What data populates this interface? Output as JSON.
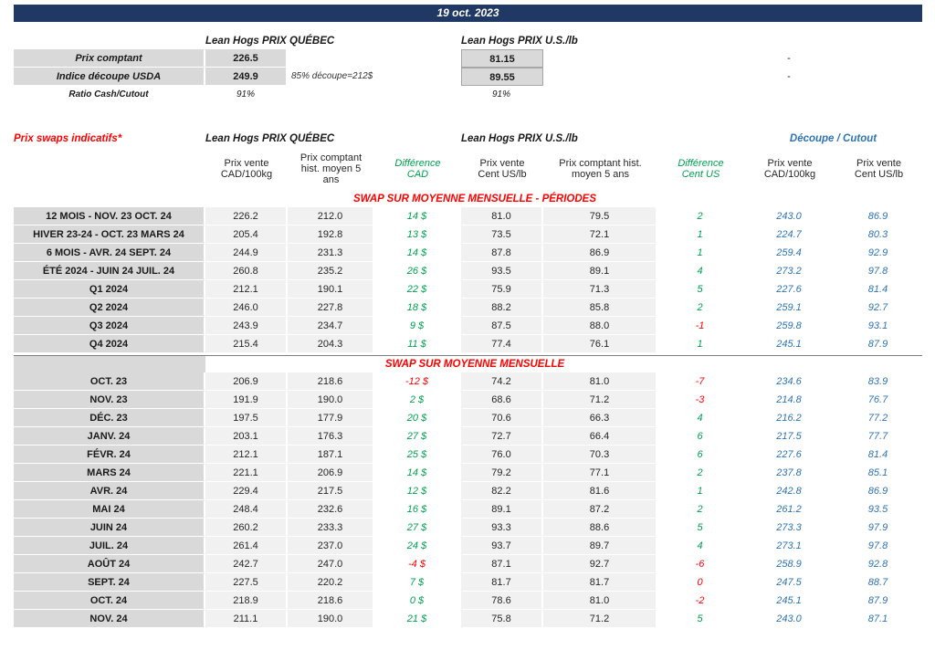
{
  "date_bar": {
    "date": "19 oct. 2023"
  },
  "colors": {
    "banner_navy": "#1f3864",
    "title_red": "#ff0000",
    "diff_green": "#00a050",
    "cutout_blue": "#2e74b5",
    "label_gray": "#d9d9d9",
    "cell_gray": "#f1f1f1"
  },
  "spot": {
    "quebec_title": "Lean Hogs PRIX QUÉBEC",
    "us_title": "Lean Hogs PRIX U.S./lb",
    "rows": [
      {
        "label": "Prix comptant",
        "quebec": "226.5",
        "note": "",
        "us": "81.15",
        "right": "-"
      },
      {
        "label": "Indice découpe USDA",
        "quebec": "249.9",
        "note": "85% découpe=212$",
        "us": "89.55",
        "right": "-"
      },
      {
        "label": "Ratio Cash/Cutout",
        "quebec": "91%",
        "note": "",
        "us": "91%",
        "right": ""
      }
    ]
  },
  "swaps": {
    "title": "Prix swaps indicatifs*",
    "quebec_group": "Lean Hogs PRIX QUÉBEC",
    "us_group": "Lean Hogs PRIX U.S./lb",
    "cutout_group": "Découpe / Cutout",
    "col_headers": [
      "Prix vente\nCAD/100kg",
      "Prix comptant\nhist. moyen 5\nans",
      "Différence\nCAD",
      "Prix vente\nCent US/lb",
      "Prix comptant hist.\nmoyen 5 ans",
      "Différence\nCent US",
      "Prix vente\nCAD/100kg",
      "Prix vente\nCent US/lb"
    ],
    "periods_title": "SWAP SUR MOYENNE MENSUELLE - PÉRIODES",
    "monthly_title": "SWAP SUR MOYENNE MENSUELLE",
    "period_rows": [
      {
        "label": "12 MOIS - NOV. 23 OCT. 24",
        "vente_cad": "226.2",
        "hist_cad": "212.0",
        "diff_cad": "14 $",
        "diff_cad_tone": "pos",
        "vente_us": "81.0",
        "hist_us": "79.5",
        "diff_us": "2",
        "diff_us_tone": "pos",
        "cutout_cad": "243.0",
        "cutout_us": "86.9"
      },
      {
        "label": "HIVER 23-24 -  OCT. 23 MARS 24",
        "vente_cad": "205.4",
        "hist_cad": "192.8",
        "diff_cad": "13 $",
        "diff_cad_tone": "pos",
        "vente_us": "73.5",
        "hist_us": "72.1",
        "diff_us": "1",
        "diff_us_tone": "pos",
        "cutout_cad": "224.7",
        "cutout_us": "80.3"
      },
      {
        "label": "6 MOIS -  AVR. 24 SEPT. 24",
        "vente_cad": "244.9",
        "hist_cad": "231.3",
        "diff_cad": "14 $",
        "diff_cad_tone": "pos",
        "vente_us": "87.8",
        "hist_us": "86.9",
        "diff_us": "1",
        "diff_us_tone": "pos",
        "cutout_cad": "259.4",
        "cutout_us": "92.9"
      },
      {
        "label": "ÉTÉ 2024 - JUIN 24 JUIL. 24",
        "vente_cad": "260.8",
        "hist_cad": "235.2",
        "diff_cad": "26 $",
        "diff_cad_tone": "pos",
        "vente_us": "93.5",
        "hist_us": "89.1",
        "diff_us": "4",
        "diff_us_tone": "pos",
        "cutout_cad": "273.2",
        "cutout_us": "97.8"
      },
      {
        "label": "Q1 2024",
        "vente_cad": "212.1",
        "hist_cad": "190.1",
        "diff_cad": "22 $",
        "diff_cad_tone": "pos",
        "vente_us": "75.9",
        "hist_us": "71.3",
        "diff_us": "5",
        "diff_us_tone": "pos",
        "cutout_cad": "227.6",
        "cutout_us": "81.4"
      },
      {
        "label": "Q2 2024",
        "vente_cad": "246.0",
        "hist_cad": "227.8",
        "diff_cad": "18 $",
        "diff_cad_tone": "pos",
        "vente_us": "88.2",
        "hist_us": "85.8",
        "diff_us": "2",
        "diff_us_tone": "pos",
        "cutout_cad": "259.1",
        "cutout_us": "92.7"
      },
      {
        "label": "Q3 2024",
        "vente_cad": "243.9",
        "hist_cad": "234.7",
        "diff_cad": "9 $",
        "diff_cad_tone": "pos",
        "vente_us": "87.5",
        "hist_us": "88.0",
        "diff_us": "-1",
        "diff_us_tone": "neg",
        "cutout_cad": "259.8",
        "cutout_us": "93.1"
      },
      {
        "label": "Q4 2024",
        "vente_cad": "215.4",
        "hist_cad": "204.3",
        "diff_cad": "11 $",
        "diff_cad_tone": "pos",
        "vente_us": "77.4",
        "hist_us": "76.1",
        "diff_us": "1",
        "diff_us_tone": "pos",
        "cutout_cad": "245.1",
        "cutout_us": "87.9"
      }
    ],
    "monthly_rows": [
      {
        "label": "OCT. 23",
        "vente_cad": "206.9",
        "hist_cad": "218.6",
        "diff_cad": "-12 $",
        "diff_cad_tone": "neg",
        "vente_us": "74.2",
        "hist_us": "81.0",
        "diff_us": "-7",
        "diff_us_tone": "neg",
        "cutout_cad": "234.6",
        "cutout_us": "83.9"
      },
      {
        "label": "NOV. 23",
        "vente_cad": "191.9",
        "hist_cad": "190.0",
        "diff_cad": "2 $",
        "diff_cad_tone": "pos",
        "vente_us": "68.6",
        "hist_us": "71.2",
        "diff_us": "-3",
        "diff_us_tone": "neg",
        "cutout_cad": "214.8",
        "cutout_us": "76.7"
      },
      {
        "label": "DÉC. 23",
        "vente_cad": "197.5",
        "hist_cad": "177.9",
        "diff_cad": "20 $",
        "diff_cad_tone": "pos",
        "vente_us": "70.6",
        "hist_us": "66.3",
        "diff_us": "4",
        "diff_us_tone": "pos",
        "cutout_cad": "216.2",
        "cutout_us": "77.2"
      },
      {
        "label": "JANV. 24",
        "vente_cad": "203.1",
        "hist_cad": "176.3",
        "diff_cad": "27 $",
        "diff_cad_tone": "pos",
        "vente_us": "72.7",
        "hist_us": "66.4",
        "diff_us": "6",
        "diff_us_tone": "pos",
        "cutout_cad": "217.5",
        "cutout_us": "77.7"
      },
      {
        "label": "FÉVR. 24",
        "vente_cad": "212.1",
        "hist_cad": "187.1",
        "diff_cad": "25 $",
        "diff_cad_tone": "pos",
        "vente_us": "76.0",
        "hist_us": "70.3",
        "diff_us": "6",
        "diff_us_tone": "pos",
        "cutout_cad": "227.6",
        "cutout_us": "81.4"
      },
      {
        "label": "MARS 24",
        "vente_cad": "221.1",
        "hist_cad": "206.9",
        "diff_cad": "14 $",
        "diff_cad_tone": "pos",
        "vente_us": "79.2",
        "hist_us": "77.1",
        "diff_us": "2",
        "diff_us_tone": "pos",
        "cutout_cad": "237.8",
        "cutout_us": "85.1"
      },
      {
        "label": "AVR. 24",
        "vente_cad": "229.4",
        "hist_cad": "217.5",
        "diff_cad": "12 $",
        "diff_cad_tone": "pos",
        "vente_us": "82.2",
        "hist_us": "81.6",
        "diff_us": "1",
        "diff_us_tone": "pos",
        "cutout_cad": "242.8",
        "cutout_us": "86.9"
      },
      {
        "label": "MAI 24",
        "vente_cad": "248.4",
        "hist_cad": "232.6",
        "diff_cad": "16 $",
        "diff_cad_tone": "pos",
        "vente_us": "89.1",
        "hist_us": "87.2",
        "diff_us": "2",
        "diff_us_tone": "pos",
        "cutout_cad": "261.2",
        "cutout_us": "93.5"
      },
      {
        "label": "JUIN 24",
        "vente_cad": "260.2",
        "hist_cad": "233.3",
        "diff_cad": "27 $",
        "diff_cad_tone": "pos",
        "vente_us": "93.3",
        "hist_us": "88.6",
        "diff_us": "5",
        "diff_us_tone": "pos",
        "cutout_cad": "273.3",
        "cutout_us": "97.9"
      },
      {
        "label": "JUIL. 24",
        "vente_cad": "261.4",
        "hist_cad": "237.0",
        "diff_cad": "24 $",
        "diff_cad_tone": "pos",
        "vente_us": "93.7",
        "hist_us": "89.7",
        "diff_us": "4",
        "diff_us_tone": "pos",
        "cutout_cad": "273.1",
        "cutout_us": "97.8"
      },
      {
        "label": "AOÛT 24",
        "vente_cad": "242.7",
        "hist_cad": "247.0",
        "diff_cad": "-4 $",
        "diff_cad_tone": "neg",
        "vente_us": "87.1",
        "hist_us": "92.7",
        "diff_us": "-6",
        "diff_us_tone": "neg",
        "cutout_cad": "258.9",
        "cutout_us": "92.8"
      },
      {
        "label": "SEPT. 24",
        "vente_cad": "227.5",
        "hist_cad": "220.2",
        "diff_cad": "7 $",
        "diff_cad_tone": "pos",
        "vente_us": "81.7",
        "hist_us": "81.7",
        "diff_us": "0",
        "diff_us_tone": "neg",
        "cutout_cad": "247.5",
        "cutout_us": "88.7"
      },
      {
        "label": "OCT. 24",
        "vente_cad": "218.9",
        "hist_cad": "218.6",
        "diff_cad": "0 $",
        "diff_cad_tone": "pos",
        "vente_us": "78.6",
        "hist_us": "81.0",
        "diff_us": "-2",
        "diff_us_tone": "neg",
        "cutout_cad": "245.1",
        "cutout_us": "87.9"
      },
      {
        "label": "NOV. 24",
        "vente_cad": "211.1",
        "hist_cad": "190.0",
        "diff_cad": "21 $",
        "diff_cad_tone": "pos",
        "vente_us": "75.8",
        "hist_us": "71.2",
        "diff_us": "5",
        "diff_us_tone": "pos",
        "cutout_cad": "243.0",
        "cutout_us": "87.1"
      }
    ]
  }
}
